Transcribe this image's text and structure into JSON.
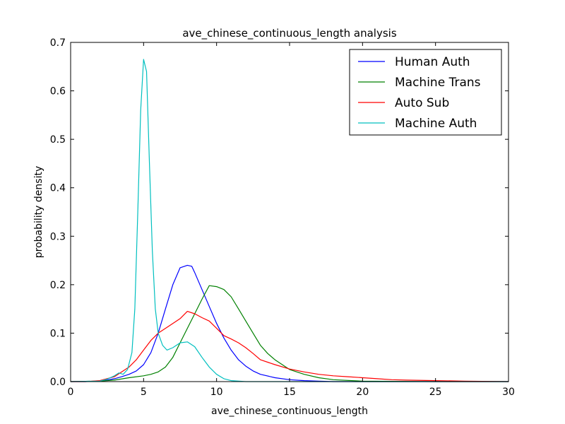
{
  "chart_data": {
    "type": "line",
    "title": "ave_chinese_continuous_length analysis",
    "xlabel": "ave_chinese_continuous_length",
    "ylabel": "probability density",
    "xlim": [
      0,
      30
    ],
    "ylim": [
      0,
      0.7
    ],
    "xticks": [
      "0",
      "5",
      "10",
      "15",
      "20",
      "25",
      "30"
    ],
    "yticks": [
      "0.0",
      "0.1",
      "0.2",
      "0.3",
      "0.4",
      "0.5",
      "0.6",
      "0.7"
    ],
    "grid": false,
    "legend_position": "top-right",
    "series": [
      {
        "name": "Human Auth",
        "color": "#0000ff",
        "x": [
          0,
          1,
          2,
          2.5,
          3,
          3.5,
          4,
          4.5,
          5,
          5.5,
          6,
          6.5,
          7,
          7.5,
          8,
          8.3,
          8.5,
          9,
          9.5,
          10,
          10.5,
          11,
          11.5,
          12,
          12.5,
          13,
          14,
          15,
          16,
          17,
          18,
          20,
          25,
          30
        ],
        "y": [
          0.0,
          0.0,
          0.001,
          0.003,
          0.006,
          0.01,
          0.015,
          0.022,
          0.035,
          0.06,
          0.1,
          0.15,
          0.2,
          0.235,
          0.24,
          0.238,
          0.225,
          0.19,
          0.155,
          0.12,
          0.09,
          0.065,
          0.045,
          0.032,
          0.022,
          0.015,
          0.008,
          0.004,
          0.002,
          0.001,
          0.0,
          0.0,
          0.0,
          0.0
        ]
      },
      {
        "name": "Machine Trans",
        "color": "#008000",
        "x": [
          0,
          2,
          3,
          4,
          5,
          5.5,
          6,
          6.5,
          7,
          7.5,
          8,
          8.5,
          9,
          9.5,
          10,
          10.5,
          11,
          11.5,
          12,
          12.5,
          13,
          13.5,
          14,
          15,
          16,
          17,
          18,
          20,
          25,
          30
        ],
        "y": [
          0.0,
          0.001,
          0.003,
          0.008,
          0.012,
          0.015,
          0.02,
          0.03,
          0.05,
          0.08,
          0.11,
          0.14,
          0.17,
          0.198,
          0.196,
          0.19,
          0.175,
          0.15,
          0.125,
          0.1,
          0.075,
          0.058,
          0.045,
          0.025,
          0.015,
          0.008,
          0.004,
          0.001,
          0.0,
          0.0
        ]
      },
      {
        "name": "Auto Sub",
        "color": "#ff0000",
        "x": [
          0,
          1,
          2,
          3,
          3.5,
          4,
          4.5,
          5,
          5.5,
          6,
          6.5,
          7,
          7.5,
          8,
          8.5,
          9,
          9.5,
          10,
          10.5,
          11,
          11.5,
          12,
          12.5,
          13,
          14,
          15,
          16,
          17,
          18,
          19,
          20,
          21,
          22,
          23,
          25,
          27,
          30
        ],
        "y": [
          0.0,
          0.0,
          0.002,
          0.01,
          0.02,
          0.03,
          0.045,
          0.065,
          0.085,
          0.1,
          0.11,
          0.12,
          0.13,
          0.145,
          0.14,
          0.132,
          0.125,
          0.11,
          0.095,
          0.088,
          0.08,
          0.07,
          0.058,
          0.045,
          0.035,
          0.026,
          0.02,
          0.015,
          0.012,
          0.01,
          0.008,
          0.006,
          0.004,
          0.003,
          0.002,
          0.001,
          0.0
        ]
      },
      {
        "name": "Machine Auth",
        "color": "#00bfbf",
        "x": [
          0,
          2,
          2.5,
          3,
          3.3,
          3.6,
          3.9,
          4.2,
          4.4,
          4.6,
          4.8,
          5.0,
          5.2,
          5.4,
          5.6,
          5.8,
          6.0,
          6.3,
          6.6,
          7.0,
          7.5,
          8.0,
          8.5,
          9.0,
          9.5,
          10,
          10.5,
          11,
          12,
          15,
          30
        ],
        "y": [
          0.0,
          0.001,
          0.005,
          0.012,
          0.018,
          0.015,
          0.025,
          0.06,
          0.15,
          0.35,
          0.56,
          0.665,
          0.64,
          0.45,
          0.27,
          0.15,
          0.1,
          0.075,
          0.065,
          0.07,
          0.08,
          0.082,
          0.072,
          0.05,
          0.03,
          0.015,
          0.006,
          0.002,
          0.0,
          0.0,
          0.0
        ]
      }
    ]
  }
}
